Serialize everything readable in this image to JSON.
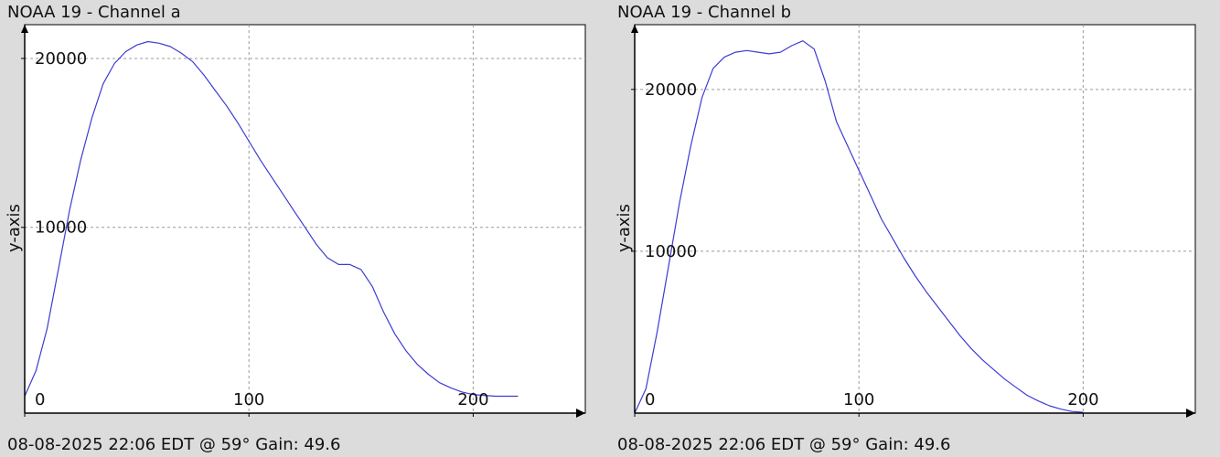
{
  "chart_data": [
    {
      "type": "line",
      "title": "NOAA 19 - Channel a",
      "footer": "08-08-2025 22:06 EDT @ 59° Gain: 49.6",
      "xlabel": "",
      "ylabel": "y-axis",
      "xlim": [
        0,
        250
      ],
      "ylim": [
        -1000,
        22000
      ],
      "x_ticks": [
        0,
        100,
        200
      ],
      "x_tick_labels": [
        "0",
        "100",
        "200"
      ],
      "y_ticks": [
        10000,
        20000
      ],
      "y_tick_labels": [
        "10000",
        "20000"
      ],
      "grid": true,
      "line_color": "#3c3cd2",
      "series": [
        {
          "x": [
            0,
            5,
            10,
            15,
            20,
            25,
            30,
            35,
            40,
            45,
            50,
            55,
            60,
            65,
            70,
            75,
            80,
            85,
            90,
            95,
            100,
            105,
            110,
            115,
            120,
            125,
            130,
            135,
            140,
            145,
            150,
            155,
            160,
            165,
            170,
            175,
            180,
            185,
            190,
            195,
            200,
            205,
            210,
            215,
            220
          ],
          "y": [
            0,
            1500,
            4000,
            7500,
            11000,
            14000,
            16500,
            18500,
            19700,
            20400,
            20800,
            21000,
            20900,
            20700,
            20300,
            19800,
            19000,
            18100,
            17200,
            16200,
            15100,
            14000,
            13000,
            12000,
            11000,
            10000,
            9000,
            8200,
            7800,
            7800,
            7500,
            6500,
            5000,
            3700,
            2700,
            1900,
            1300,
            800,
            500,
            250,
            100,
            50,
            0,
            0,
            0
          ]
        }
      ]
    },
    {
      "type": "line",
      "title": "NOAA 19 - Channel b",
      "footer": "08-08-2025 22:06 EDT @ 59° Gain: 49.6",
      "xlabel": "",
      "ylabel": "y-axis",
      "xlim": [
        0,
        250
      ],
      "ylim": [
        0,
        24000
      ],
      "x_ticks": [
        0,
        100,
        200
      ],
      "x_tick_labels": [
        "0",
        "100",
        "200"
      ],
      "y_ticks": [
        10000,
        20000
      ],
      "y_tick_labels": [
        "10000",
        "20000"
      ],
      "grid": true,
      "line_color": "#3c3cd2",
      "series": [
        {
          "x": [
            0,
            5,
            10,
            15,
            20,
            25,
            30,
            35,
            40,
            45,
            50,
            55,
            60,
            65,
            70,
            75,
            80,
            85,
            90,
            95,
            100,
            105,
            110,
            115,
            120,
            125,
            130,
            135,
            140,
            145,
            150,
            155,
            160,
            165,
            170,
            175,
            180,
            185,
            190,
            195,
            200
          ],
          "y": [
            0,
            1500,
            5000,
            9000,
            13000,
            16500,
            19500,
            21300,
            22000,
            22300,
            22400,
            22300,
            22200,
            22300,
            22700,
            23000,
            22500,
            20500,
            18000,
            16500,
            15000,
            13500,
            12000,
            10800,
            9600,
            8500,
            7500,
            6600,
            5700,
            4800,
            4000,
            3300,
            2700,
            2100,
            1600,
            1100,
            750,
            450,
            250,
            100,
            50
          ]
        }
      ]
    }
  ]
}
